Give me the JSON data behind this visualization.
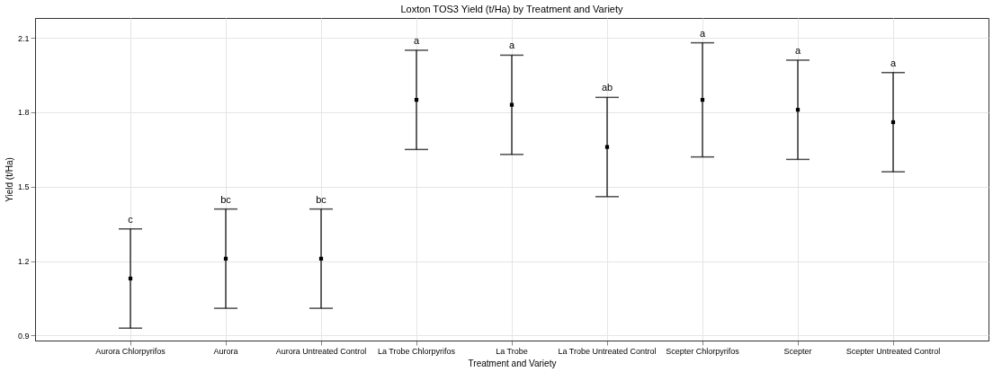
{
  "chart_data": {
    "type": "scatter",
    "title": "Loxton TOS3 Yield (t/Ha) by Treatment and Variety",
    "xlabel": "Treatment and Variety",
    "ylabel": "Yield (t/Ha)",
    "categories": [
      "Aurora Chlorpyrifos",
      "Aurora",
      "Aurora Untreated Control",
      "La Trobe Chlorpyrifos",
      "La Trobe",
      "La Trobe Untreated Control",
      "Scepter Chlorpyrifos",
      "Scepter",
      "Scepter Untreated Control"
    ],
    "series": [
      {
        "color": "#000000",
        "values": [
          1.13,
          1.21,
          1.21,
          1.85,
          1.83,
          1.66,
          1.85,
          1.81,
          1.76
        ],
        "errors": [
          0.2,
          0.2,
          0.2,
          0.2,
          0.2,
          0.2,
          0.23,
          0.2,
          0.2
        ]
      }
    ],
    "ylim": [
      0.88,
      2.18
    ],
    "yticks": [
      0.9,
      1.2,
      1.5,
      1.8,
      2.1
    ],
    "grid": true,
    "marker": "square",
    "annotations": [
      {
        "text": "c",
        "x": "Aurora Chlorpyrifos",
        "y": 1.33
      },
      {
        "text": "bc",
        "x": "Aurora",
        "y": 1.41
      },
      {
        "text": "bc",
        "x": "Aurora Untreated Control",
        "y": 1.41
      },
      {
        "text": "a",
        "x": "La Trobe Chlorpyrifos",
        "y": 2.05
      },
      {
        "text": "a",
        "x": "La Trobe",
        "y": 2.03
      },
      {
        "text": "ab",
        "x": "La Trobe Untreated Control",
        "y": 1.86
      },
      {
        "text": "a",
        "x": "Scepter Chlorpyrifos",
        "y": 2.08
      },
      {
        "text": "a",
        "x": "Scepter",
        "y": 2.01
      },
      {
        "text": "a",
        "x": "Scepter Untreated Control",
        "y": 1.96
      }
    ]
  }
}
